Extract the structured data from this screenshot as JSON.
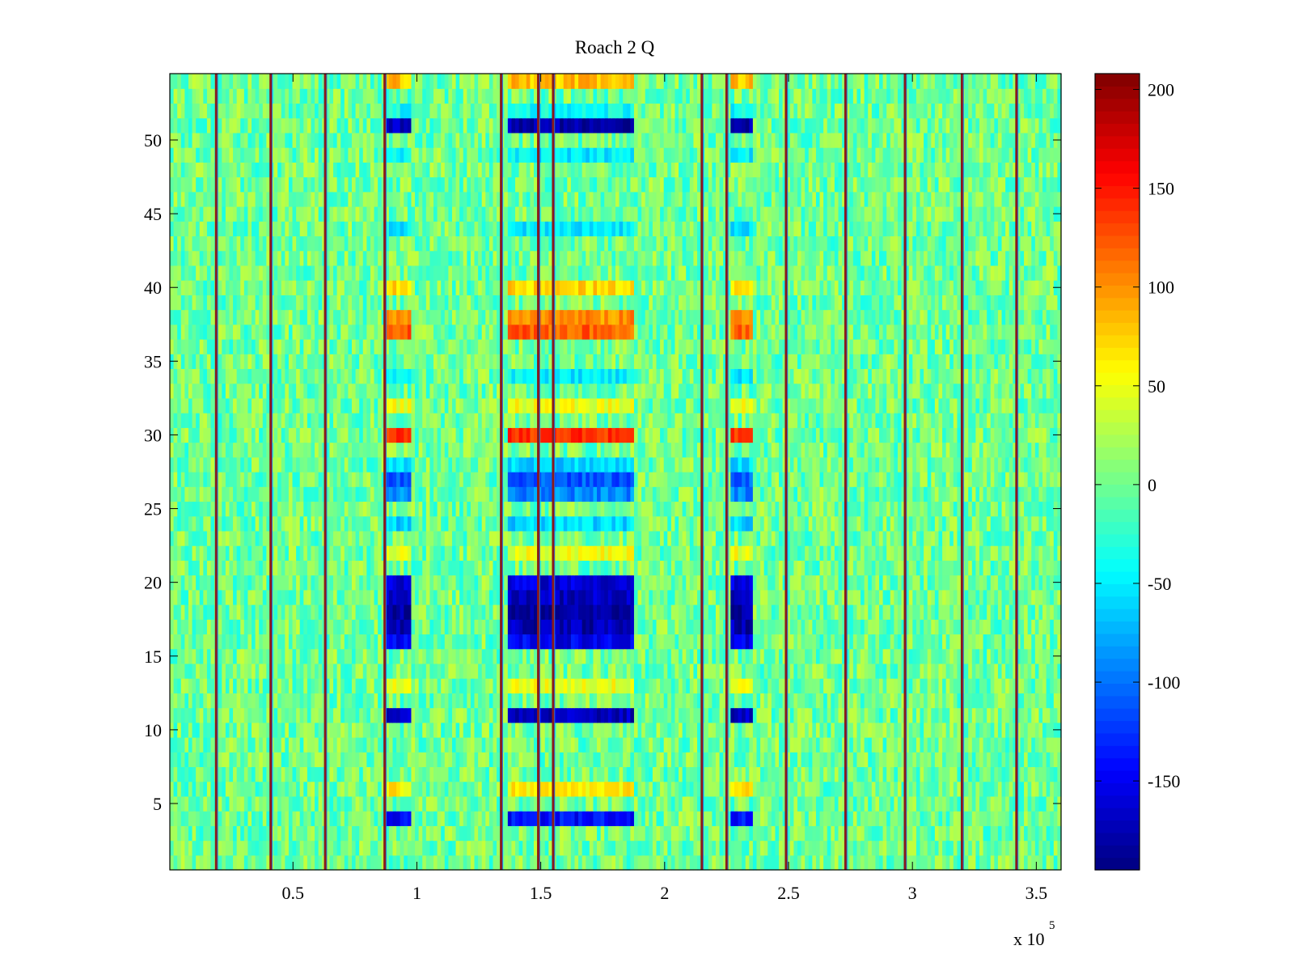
{
  "chart_data": {
    "type": "heatmap",
    "title": "Roach 2 Q",
    "colormap": "jet",
    "x_axis": {
      "range": [
        300,
        360000
      ],
      "ticks": [
        50000,
        100000,
        150000,
        200000,
        250000,
        300000,
        350000
      ],
      "tick_labels": [
        "0.5",
        "1",
        "1.5",
        "2",
        "2.5",
        "3",
        "3.5"
      ],
      "exponent_label": "x 10",
      "exponent_power": "5"
    },
    "y_axis": {
      "range": [
        0.5,
        54.5
      ],
      "ticks": [
        5,
        10,
        15,
        20,
        25,
        30,
        35,
        40,
        45,
        50
      ],
      "tick_labels": [
        "5",
        "10",
        "15",
        "20",
        "25",
        "30",
        "35",
        "40",
        "45",
        "50"
      ]
    },
    "colorbar": {
      "range": [
        -195,
        208
      ],
      "ticks": [
        -150,
        -100,
        -50,
        0,
        50,
        100,
        150,
        200
      ],
      "tick_labels": [
        "-150",
        "-100",
        "-50",
        "0",
        "50",
        "100",
        "150",
        "200"
      ]
    },
    "rows": 54,
    "background_level": 0,
    "vertical_lines_x": [
      19000,
      41000,
      63000,
      87000,
      134000,
      149000,
      155000,
      215000,
      225000,
      249000,
      273000,
      297000,
      320000,
      342000
    ],
    "block_columns": [
      {
        "x_start": 87000,
        "x_end": 97000
      },
      {
        "x_start": 137000,
        "x_end": 187000
      },
      {
        "x_start": 226000,
        "x_end": 236000
      }
    ],
    "row_levels": [
      {
        "row": 4,
        "level": -140
      },
      {
        "row": 6,
        "level": 60
      },
      {
        "row": 11,
        "level": -170
      },
      {
        "row": 13,
        "level": 50
      },
      {
        "row": 16,
        "level": -150
      },
      {
        "row": 17,
        "level": -175
      },
      {
        "row": 18,
        "level": -185
      },
      {
        "row": 19,
        "level": -170
      },
      {
        "row": 20,
        "level": -160
      },
      {
        "row": 22,
        "level": 50
      },
      {
        "row": 24,
        "level": -60
      },
      {
        "row": 26,
        "level": -90
      },
      {
        "row": 27,
        "level": -110
      },
      {
        "row": 28,
        "level": -60
      },
      {
        "row": 30,
        "level": 140
      },
      {
        "row": 32,
        "level": 50
      },
      {
        "row": 34,
        "level": -50
      },
      {
        "row": 37,
        "level": 120
      },
      {
        "row": 38,
        "level": 100
      },
      {
        "row": 40,
        "level": 70
      },
      {
        "row": 44,
        "level": -50
      },
      {
        "row": 49,
        "level": -50
      },
      {
        "row": 51,
        "level": -175
      },
      {
        "row": 52,
        "level": -40
      },
      {
        "row": 54,
        "level": 80
      }
    ]
  }
}
